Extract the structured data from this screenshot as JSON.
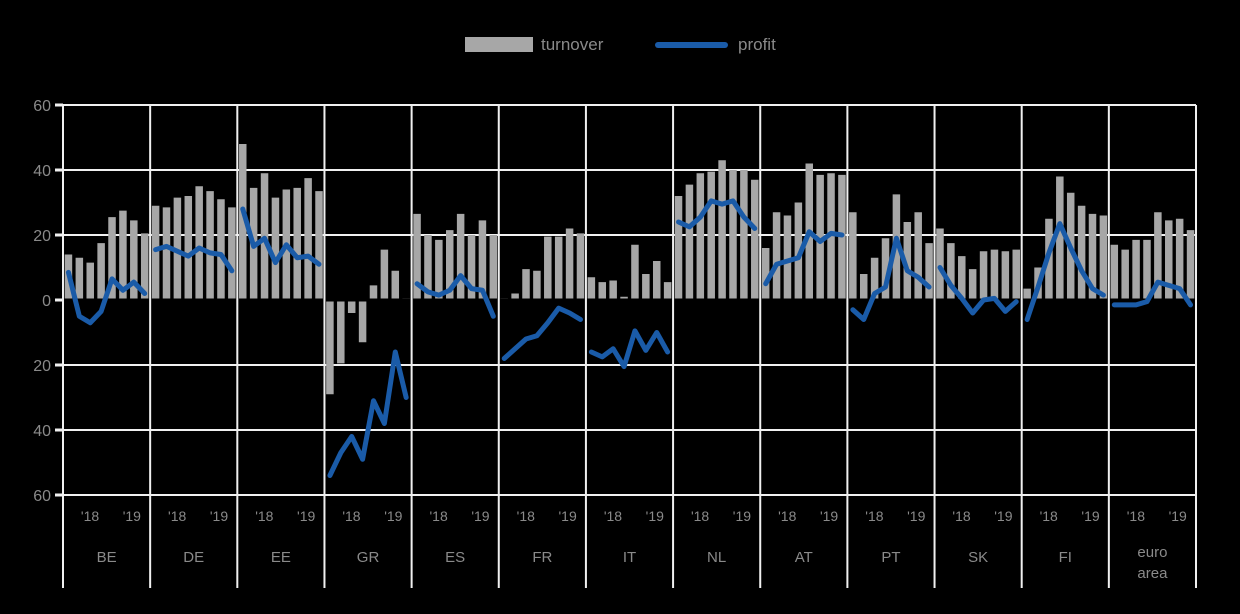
{
  "colors": {
    "background": "#000000",
    "grid": "#f0f0f0",
    "bar": "#a7a7a7",
    "line": "#1a5ba8",
    "text": "#8a8a8a",
    "zero_line": "#000000"
  },
  "legend": {
    "turnover_label": "turnover",
    "profit_label": "profit"
  },
  "y_axis": {
    "tick_labels": [
      "60",
      "40",
      "20",
      "0",
      "20",
      "40",
      "60"
    ],
    "tick_values": [
      60,
      40,
      20,
      0,
      -20,
      -40,
      -60
    ]
  },
  "x_axis": {
    "year_labels": [
      "'18",
      "'19"
    ]
  },
  "chart_data": {
    "type": "bar+line",
    "points_per_panel": 8,
    "ylim": [
      -60,
      60
    ],
    "grid": true,
    "legend_position": "top-center",
    "series_names": [
      "turnover",
      "profit"
    ],
    "panels": [
      {
        "code": "BE",
        "turnover": [
          14,
          13,
          11.5,
          17.5,
          25.5,
          27.5,
          24.5,
          20.5
        ],
        "profit": [
          8.5,
          -5,
          -7,
          -3.5,
          6.5,
          3,
          5.5,
          2
        ]
      },
      {
        "code": "DE",
        "turnover": [
          29,
          28.5,
          31.5,
          32,
          35,
          33.5,
          31,
          28.5
        ],
        "profit": [
          15.5,
          16.5,
          15,
          13.5,
          16,
          14.5,
          14,
          9
        ]
      },
      {
        "code": "EE",
        "turnover": [
          48,
          34.5,
          39,
          31.5,
          34,
          34.5,
          37.5,
          33.5
        ],
        "profit": [
          28,
          16.5,
          19,
          11.5,
          17,
          13,
          13.5,
          11
        ]
      },
      {
        "code": "GR",
        "turnover": [
          -29,
          -19.5,
          -4,
          -13,
          4.5,
          15.5,
          9,
          0.5
        ],
        "profit": [
          -54,
          -47,
          -42,
          -49,
          -31,
          -38,
          -16,
          -30
        ]
      },
      {
        "code": "ES",
        "turnover": [
          26.5,
          20,
          18.5,
          21.5,
          26.5,
          20,
          24.5,
          20
        ],
        "profit": [
          5,
          2.5,
          1.5,
          3,
          7.5,
          3.5,
          3,
          -5
        ]
      },
      {
        "code": "FR",
        "turnover": [
          0.5,
          2,
          9.5,
          9,
          19.5,
          19.5,
          22,
          20.5
        ],
        "profit": [
          -18,
          -15,
          -12,
          -11,
          -7,
          -2.5,
          -4,
          -6
        ]
      },
      {
        "code": "IT",
        "turnover": [
          7,
          5.5,
          6,
          1,
          17,
          8,
          12,
          5.5
        ],
        "profit": [
          -16,
          -17.5,
          -15,
          -20.5,
          -9.5,
          -15.5,
          -10,
          -16
        ]
      },
      {
        "code": "NL",
        "turnover": [
          32,
          35.5,
          39,
          39.5,
          43,
          40,
          40,
          37
        ],
        "profit": [
          24,
          22.5,
          25.5,
          30.5,
          29.5,
          30.5,
          25.5,
          22
        ]
      },
      {
        "code": "AT",
        "turnover": [
          16,
          27,
          26,
          30,
          42,
          38.5,
          39,
          38.5
        ],
        "profit": [
          5,
          11,
          12,
          13,
          21,
          18,
          20.5,
          20
        ]
      },
      {
        "code": "PT",
        "turnover": [
          27,
          8,
          13,
          19,
          32.5,
          24,
          27,
          17.5
        ],
        "profit": [
          -3,
          -6,
          2,
          4,
          19,
          9,
          7,
          4
        ]
      },
      {
        "code": "SK",
        "turnover": [
          22,
          17.5,
          13.5,
          9.5,
          15,
          15.5,
          15,
          15.5
        ],
        "profit": [
          10,
          4.5,
          0.5,
          -4,
          0,
          0.5,
          -3.5,
          -0.5
        ]
      },
      {
        "code": "FI",
        "turnover": [
          3.5,
          10,
          25,
          38,
          33,
          29,
          26.5,
          26
        ],
        "profit": [
          -6,
          4,
          14.5,
          23.5,
          16,
          9,
          3.5,
          1.5
        ]
      },
      {
        "code": "euro area",
        "turnover": [
          17,
          15.5,
          18.5,
          18.5,
          27,
          24.5,
          25,
          21.5
        ],
        "profit": [
          -1.5,
          -1.5,
          -1.5,
          -0.5,
          5.5,
          4.5,
          3.5,
          -1.5
        ]
      }
    ]
  }
}
